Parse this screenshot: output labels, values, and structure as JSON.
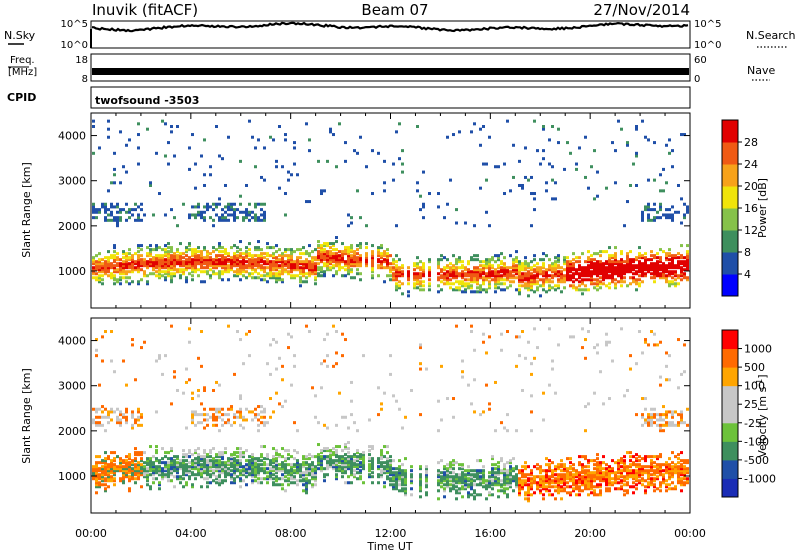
{
  "header": {
    "station": "Inuvik (fitACF)",
    "beam": "Beam 07",
    "date": "27/Nov/2014"
  },
  "noise_panel": {
    "left_label": "N.Sky",
    "right_label": "N.Search",
    "y_ticks": [
      "10^5",
      "10^0"
    ]
  },
  "freq_panel": {
    "left_label_line1": "Freq.",
    "left_label_line2": "[MHz]",
    "left_ticks": [
      "18",
      "8"
    ],
    "right_label": "Nave",
    "right_ticks": [
      "60",
      "0"
    ]
  },
  "cpid": {
    "label": "CPID",
    "program": "twofsound -3503"
  },
  "colors": {
    "power": [
      "#0000ff",
      "#1f4fa8",
      "#3e8f5e",
      "#86c24a",
      "#f0e40a",
      "#f7a21a",
      "#f05a14",
      "#e10000"
    ],
    "velocity": [
      "#ff0000",
      "#ff6a00",
      "#ffa500",
      "#c7c7c7",
      "#c7c7c7",
      "#6cc23a",
      "#3e8f5e",
      "#1f4fa8",
      "#1a2cb5"
    ]
  },
  "chart_data": [
    {
      "type": "heatmap",
      "name": "power-panel",
      "ylabel": "Slant Range [km]",
      "yticks": [
        "1000",
        "2000",
        "3000",
        "4000"
      ],
      "ylim": [
        180,
        4500
      ],
      "colorbar_label": "Power [dB]",
      "colorbar_ticks": [
        "4",
        "8",
        "12",
        "16",
        "20",
        "24",
        "28"
      ],
      "clim": [
        0,
        32
      ]
    },
    {
      "type": "heatmap",
      "name": "velocity-panel",
      "ylabel": "Slant Range [km]",
      "yticks": [
        "1000",
        "2000",
        "3000",
        "4000"
      ],
      "ylim": [
        180,
        4500
      ],
      "colorbar_label": "Velocity [m s-1]",
      "colorbar_ticks": [
        "1000",
        "500",
        "100",
        "25",
        "-25",
        "-100",
        "-500",
        "-1000"
      ]
    }
  ],
  "xaxis": {
    "label": "Time UT",
    "ticks": [
      "00:00",
      "04:00",
      "08:00",
      "12:00",
      "16:00",
      "20:00",
      "00:00"
    ]
  }
}
